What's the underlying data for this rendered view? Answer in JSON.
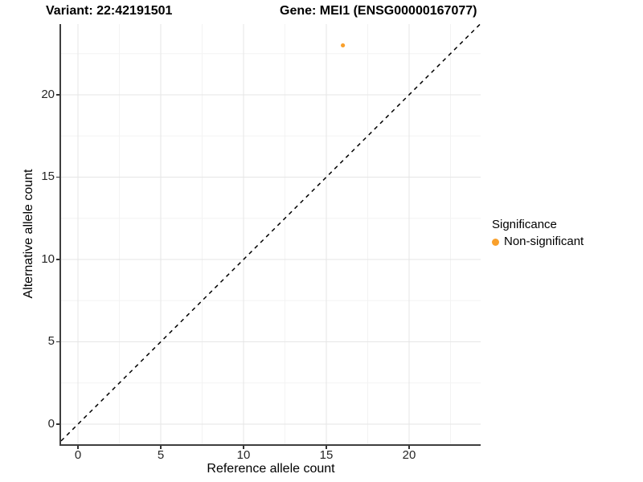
{
  "titles": {
    "variant": "Variant: 22:42191501",
    "gene": "Gene: MEI1 (ENSG00000167077)"
  },
  "legend": {
    "title": "Significance",
    "items": [
      {
        "label": "Non-significant",
        "color": "#F9A02C"
      }
    ]
  },
  "colors": {
    "background": "#FFFFFF",
    "grid_major": "#E6E6E6",
    "grid_minor": "#F3F3F3",
    "axis_line": "#3F3F3F",
    "tick_mark": "#333333",
    "tick_text": "#262626",
    "point": "#F9A02C",
    "reference_line": "#000000"
  },
  "chart_data": {
    "type": "scatter",
    "title": "Variant: 22:42191501 — Gene: MEI1 (ENSG00000167077)",
    "xlabel": "Reference allele count",
    "ylabel": "Alternative allele count",
    "x_ticks": [
      0,
      5,
      10,
      15,
      20
    ],
    "y_ticks": [
      0,
      5,
      10,
      15,
      20
    ],
    "x_minor_ticks": [
      2.5,
      7.5,
      12.5,
      17.5,
      22.5
    ],
    "y_minor_ticks": [
      2.5,
      7.5,
      12.5,
      17.5,
      22.5
    ],
    "xlim": [
      -1.02,
      24.32
    ],
    "ylim": [
      -1.22,
      24.29
    ],
    "grid": true,
    "legend_position": "right",
    "series": [
      {
        "name": "Non-significant",
        "color": "#F9A02C",
        "points": [
          {
            "x": 16,
            "y": 23
          }
        ]
      }
    ],
    "reference_line": {
      "type": "identity",
      "slope": 1,
      "intercept": 0,
      "style": "dashed",
      "color": "#000000"
    }
  }
}
